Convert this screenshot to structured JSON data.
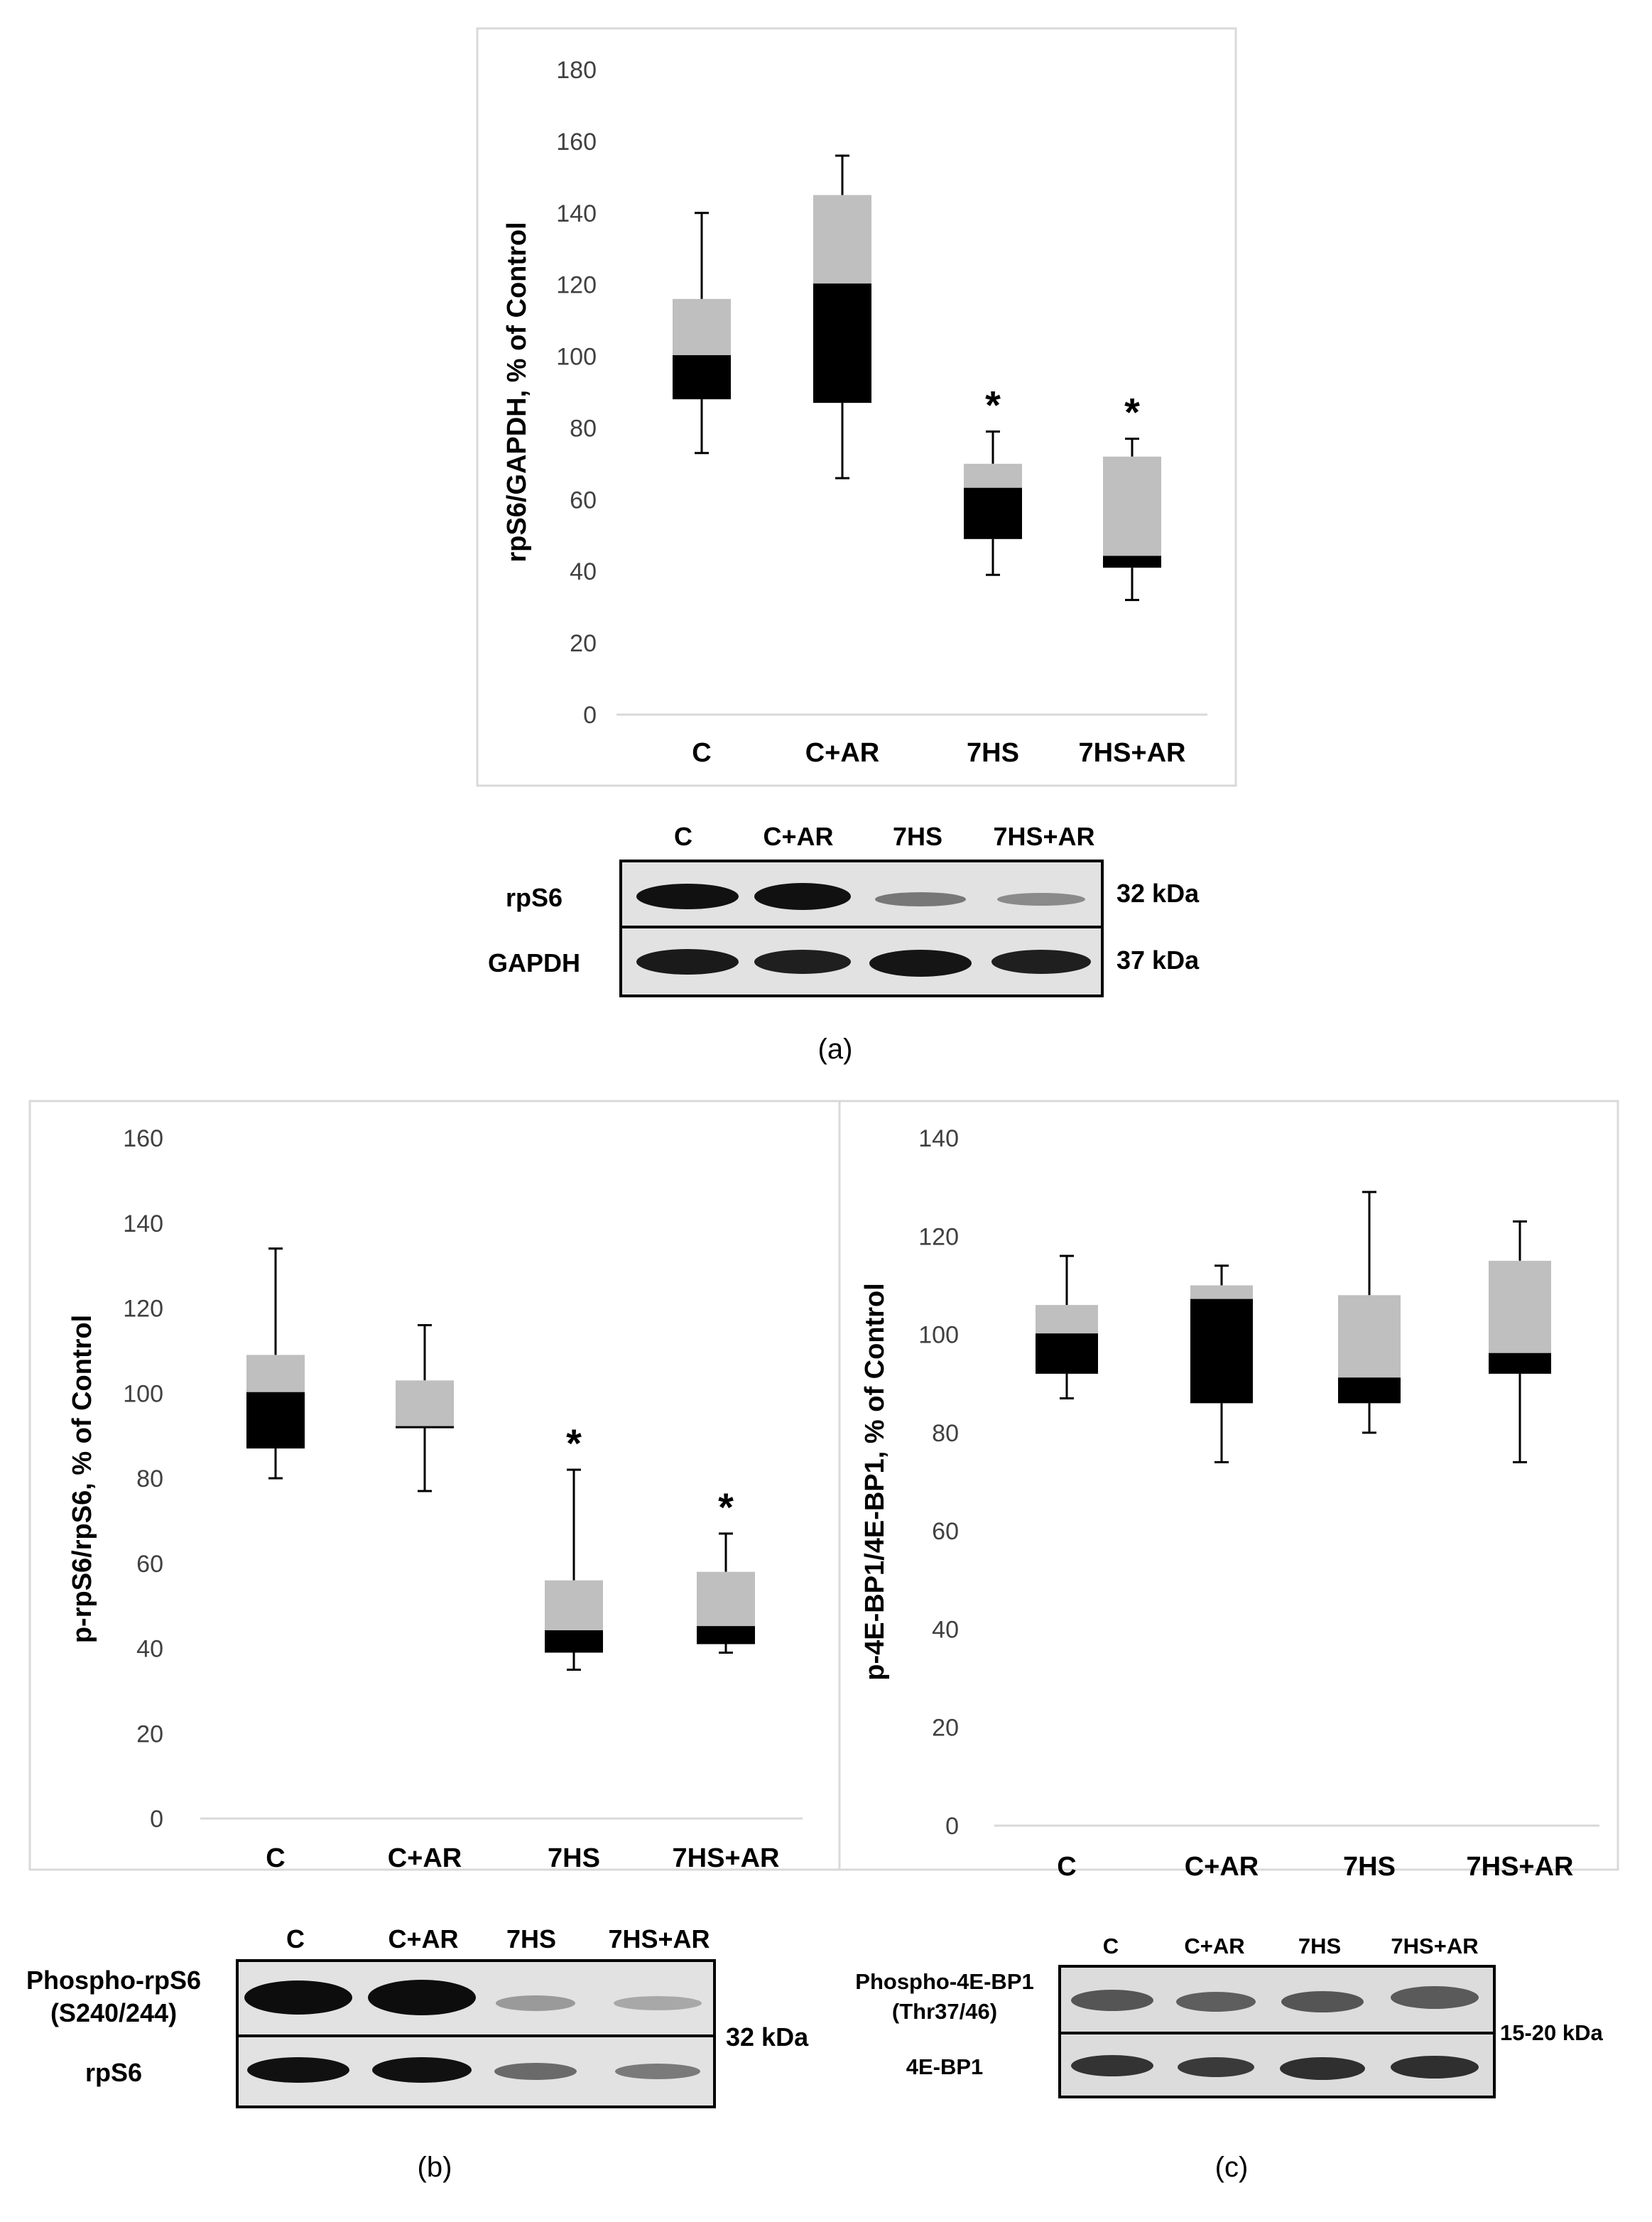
{
  "chart_data": [
    {
      "id": "a",
      "type": "boxplot",
      "ylabel": "rpS6/GAPDH, % of Control",
      "ylim": [
        0,
        180
      ],
      "yticks": [
        0,
        20,
        40,
        60,
        80,
        100,
        120,
        140,
        160,
        180
      ],
      "categories": [
        "C",
        "C+AR",
        "7HS",
        "7HS+AR"
      ],
      "boxes": [
        {
          "min": 73,
          "q1": 88,
          "median": 100,
          "q3": 116,
          "max": 140,
          "sig": ""
        },
        {
          "min": 66,
          "q1": 87,
          "median": 120,
          "q3": 145,
          "max": 156,
          "sig": ""
        },
        {
          "min": 39,
          "q1": 49,
          "median": 63,
          "q3": 70,
          "max": 79,
          "sig": "*"
        },
        {
          "min": 32,
          "q1": 41,
          "median": 44,
          "q3": 72,
          "max": 77,
          "sig": "*"
        }
      ],
      "grid": false
    },
    {
      "id": "b",
      "type": "boxplot",
      "ylabel": "p-rpS6/rpS6, % of Control",
      "ylim": [
        0,
        160
      ],
      "yticks": [
        0,
        20,
        40,
        60,
        80,
        100,
        120,
        140,
        160
      ],
      "categories": [
        "C",
        "C+AR",
        "7HS",
        "7HS+AR"
      ],
      "boxes": [
        {
          "min": 80,
          "q1": 87,
          "median": 100,
          "q3": 109,
          "max": 134,
          "sig": ""
        },
        {
          "min": 77,
          "q1": 92,
          "median": 92,
          "q3": 103,
          "max": 116,
          "sig": ""
        },
        {
          "min": 35,
          "q1": 39,
          "median": 44,
          "q3": 56,
          "max": 82,
          "sig": "*"
        },
        {
          "min": 39,
          "q1": 41,
          "median": 45,
          "q3": 58,
          "max": 67,
          "sig": "*"
        }
      ],
      "grid": false
    },
    {
      "id": "c",
      "type": "boxplot",
      "ylabel": "p-4E-BP1/4E-BP1, % of Control",
      "ylim": [
        0,
        140
      ],
      "yticks": [
        0,
        20,
        40,
        60,
        80,
        100,
        120,
        140
      ],
      "categories": [
        "C",
        "C+AR",
        "7HS",
        "7HS+AR"
      ],
      "boxes": [
        {
          "min": 87,
          "q1": 92,
          "median": 100,
          "q3": 106,
          "max": 116,
          "sig": ""
        },
        {
          "min": 74,
          "q1": 86,
          "median": 107,
          "q3": 110,
          "max": 114,
          "sig": ""
        },
        {
          "min": 80,
          "q1": 86,
          "median": 91,
          "q3": 108,
          "max": 129,
          "sig": ""
        },
        {
          "min": 74,
          "q1": 92,
          "median": 96,
          "q3": 115,
          "max": 123,
          "sig": ""
        }
      ],
      "grid": false
    }
  ],
  "colors": {
    "lower_box": "#000000",
    "upper_box": "#bfbfbf",
    "frame": "#d9d9d9",
    "axis": "#d9d9d9"
  },
  "blots": {
    "a": {
      "lanes": [
        "C",
        "C+AR",
        "7HS",
        "7HS+AR"
      ],
      "rows": [
        {
          "label": "rpS6",
          "size": "32 kDa"
        },
        {
          "label": "GAPDH",
          "size": "37 kDa"
        }
      ],
      "caption": "(a)"
    },
    "b": {
      "lanes": [
        "C",
        "C+AR",
        "7HS",
        "7HS+AR"
      ],
      "row1_label_line1": "Phospho-rpS6",
      "row1_label_line2": "(S240/244)",
      "row2_label": "rpS6",
      "size": "32 kDa",
      "caption": "(b)"
    },
    "c": {
      "lanes": [
        "C",
        "C+AR",
        "7HS",
        "7HS+AR"
      ],
      "row1_label_line1": "Phospho-4E-BP1",
      "row1_label_line2": "(Thr37/46)",
      "row2_label": "4E-BP1",
      "size": "15-20 kDa",
      "caption": "(c)"
    }
  }
}
